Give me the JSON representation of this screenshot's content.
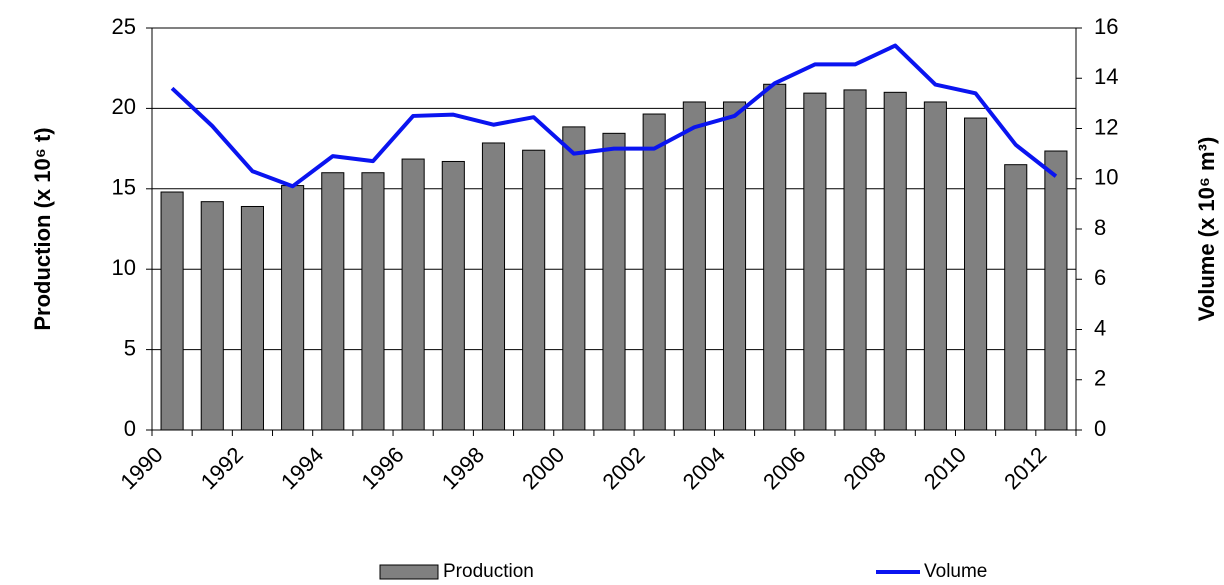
{
  "chart_data": {
    "type": "bar",
    "categories": [
      "1990",
      null,
      "1992",
      null,
      "1994",
      null,
      "1996",
      null,
      "1998",
      null,
      "2000",
      null,
      "2002",
      null,
      "2004",
      null,
      "2006",
      null,
      "2008",
      null,
      "2010",
      null,
      "2012"
    ],
    "series": [
      {
        "name": "Production",
        "type": "bar",
        "color": "#808080",
        "values": [
          14.8,
          14.2,
          13.9,
          15.2,
          16.0,
          16.0,
          16.85,
          16.7,
          17.85,
          17.4,
          18.85,
          18.45,
          19.65,
          20.4,
          20.4,
          21.5,
          20.95,
          21.15,
          21.0,
          20.4,
          19.4,
          16.5,
          17.35
        ]
      },
      {
        "name": "Volume",
        "type": "line",
        "axis": "y2",
        "color": "#0a14f0",
        "values": [
          13.6,
          12.1,
          10.3,
          9.7,
          10.9,
          10.7,
          12.5,
          12.55,
          12.15,
          12.45,
          11.0,
          11.2,
          11.2,
          12.05,
          12.5,
          13.8,
          14.55,
          14.55,
          15.3,
          13.75,
          13.4,
          11.35,
          10.1
        ]
      }
    ],
    "y_label": "Production (x 10⁶ t)",
    "y2_label": "Volume (x 10⁶ m³)",
    "ylim": [
      0,
      25
    ],
    "yticks": [
      0,
      5,
      10,
      15,
      20,
      25
    ],
    "y2lim": [
      0,
      16
    ],
    "y2ticks": [
      0,
      2,
      4,
      6,
      8,
      10,
      12,
      14,
      16
    ],
    "grid": true,
    "legend": "bottom"
  }
}
